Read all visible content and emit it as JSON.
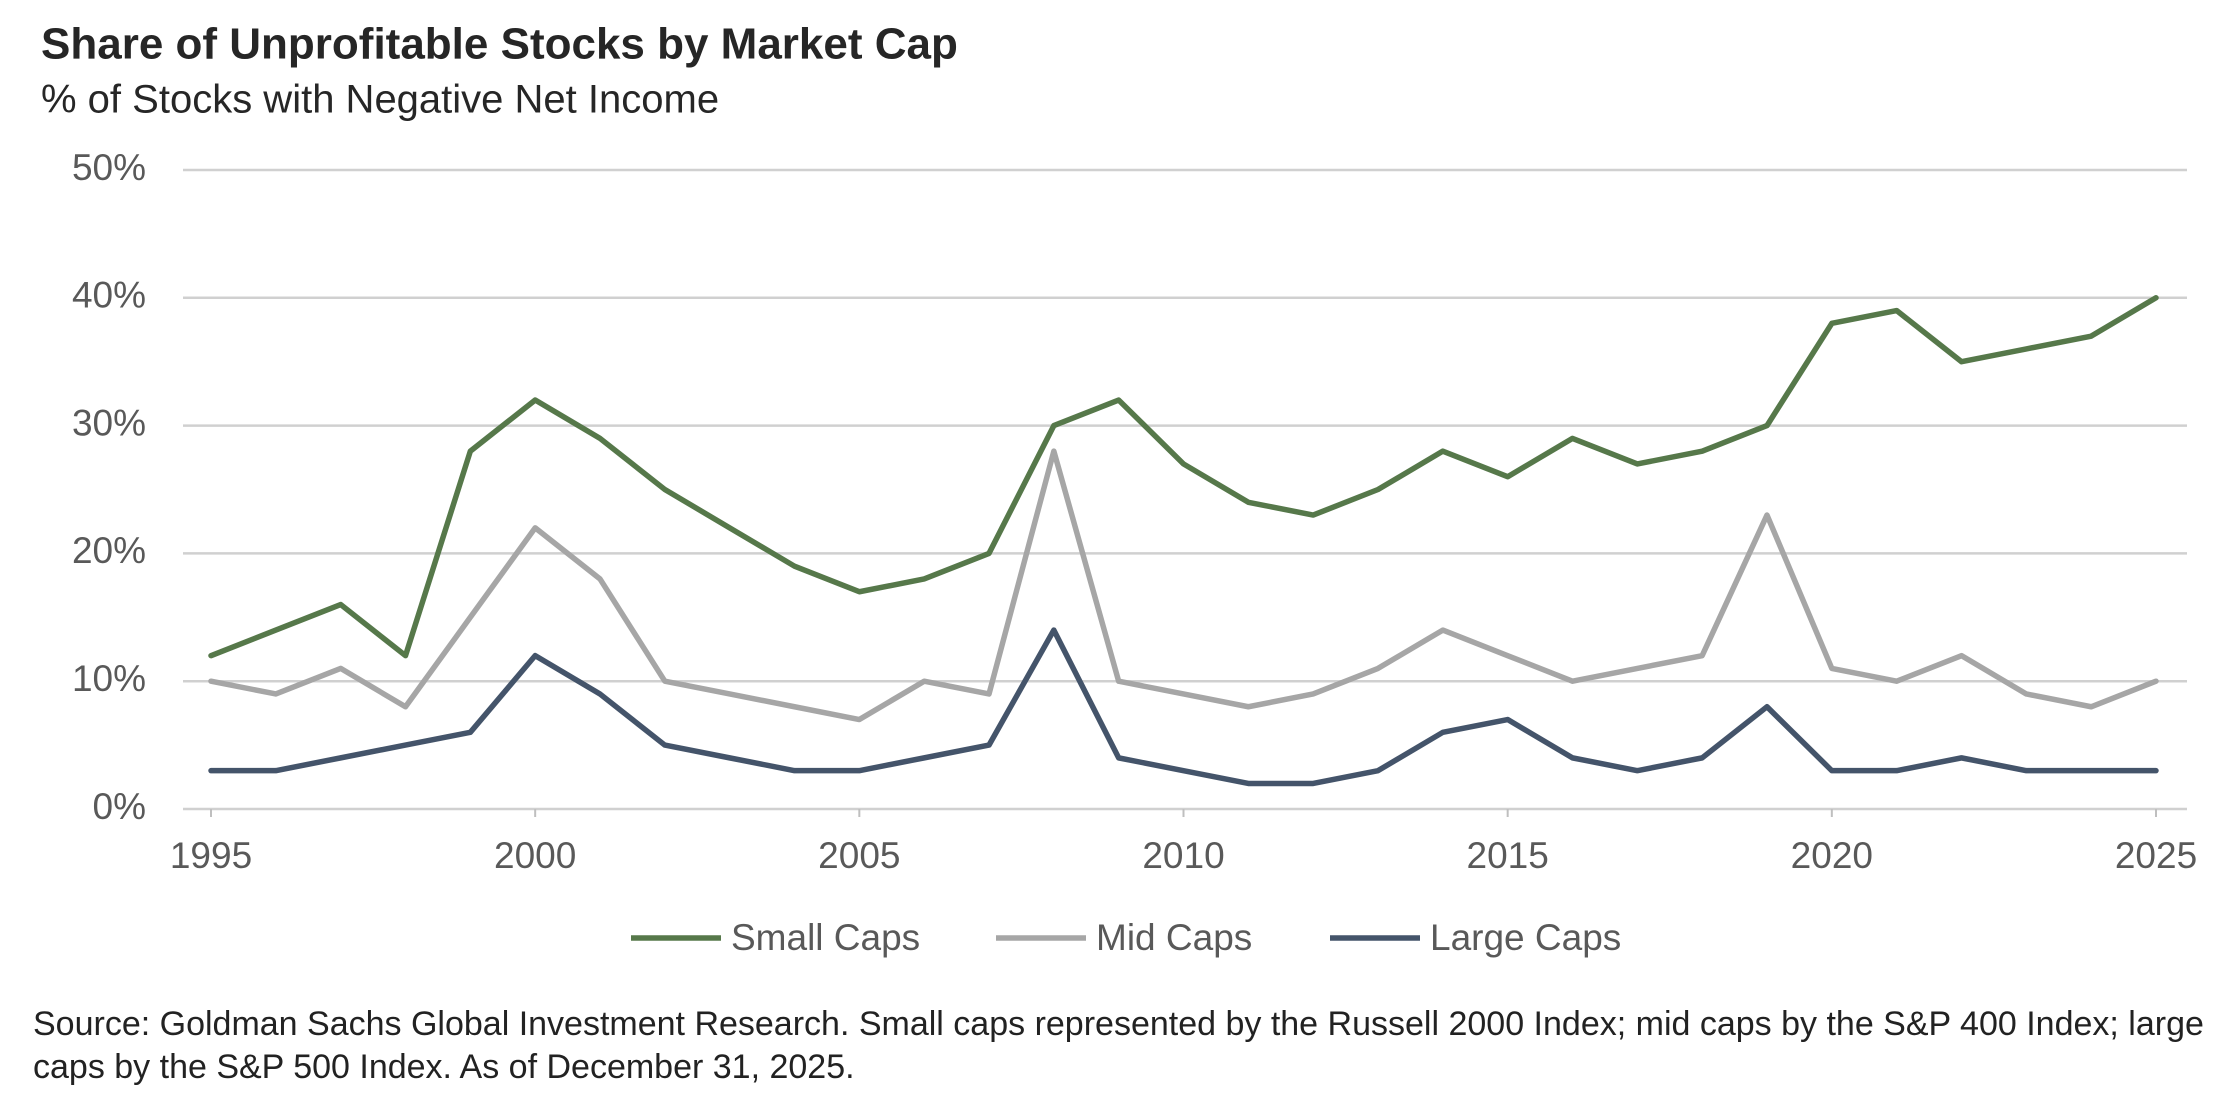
{
  "chart_data": {
    "type": "line",
    "title": "Share of Unprofitable Stocks by Market Cap",
    "subtitle": "% of Stocks with Negative Net Income",
    "x": [
      1995,
      1996,
      1997,
      1998,
      1999,
      2000,
      2001,
      2002,
      2003,
      2004,
      2005,
      2006,
      2007,
      2008,
      2009,
      2010,
      2011,
      2012,
      2013,
      2014,
      2015,
      2016,
      2017,
      2018,
      2019,
      2020,
      2021,
      2022,
      2023,
      2024,
      2025
    ],
    "series": [
      {
        "name": "Small Caps",
        "color": "#56784a",
        "values": [
          12,
          14,
          16,
          12,
          28,
          32,
          29,
          25,
          22,
          19,
          17,
          18,
          20,
          30,
          32,
          27,
          24,
          23,
          25,
          28,
          26,
          29,
          27,
          28,
          30,
          38,
          39,
          35,
          36,
          37,
          40
        ]
      },
      {
        "name": "Mid Caps",
        "color": "#a6a6a6",
        "values": [
          10,
          9,
          11,
          8,
          15,
          22,
          18,
          10,
          9,
          8,
          7,
          10,
          9,
          28,
          10,
          9,
          8,
          9,
          11,
          14,
          12,
          10,
          11,
          12,
          23,
          11,
          10,
          12,
          9,
          8,
          10
        ]
      },
      {
        "name": "Large Caps",
        "color": "#44546a",
        "values": [
          3,
          3,
          4,
          5,
          6,
          12,
          9,
          5,
          4,
          3,
          3,
          4,
          5,
          14,
          4,
          3,
          2,
          2,
          3,
          6,
          7,
          4,
          3,
          4,
          8,
          3,
          3,
          4,
          3,
          3,
          3
        ]
      }
    ],
    "xlim": [
      1995,
      2025
    ],
    "xticks": [
      1995,
      2000,
      2005,
      2010,
      2015,
      2020,
      2025
    ],
    "ylim": [
      0,
      50
    ],
    "yticks": [
      {
        "value": 0,
        "label": "0%"
      },
      {
        "value": 10,
        "label": "10%"
      },
      {
        "value": 20,
        "label": "20%"
      },
      {
        "value": 30,
        "label": "30%"
      },
      {
        "value": 40,
        "label": "40%"
      },
      {
        "value": 50,
        "label": "50%"
      }
    ],
    "grid": true,
    "legend": "bottom",
    "source": "Source: Goldman Sachs Global Investment Research. Small caps represented by the Russell 2000 Index; mid caps by the S&P 400 Index; large caps by the S&P 500 Index. As of December 31, 2025."
  }
}
